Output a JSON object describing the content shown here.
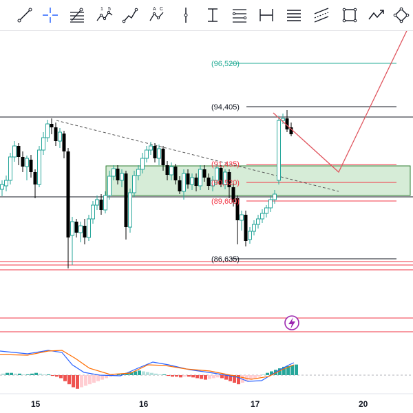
{
  "toolbar": {
    "tools": [
      {
        "name": "trend-line-tool"
      },
      {
        "name": "crosshair-tool"
      },
      {
        "name": "fib-retracement-tool"
      },
      {
        "name": "xabcd-pattern-tool",
        "text_a": "1",
        "text_b": "5"
      },
      {
        "name": "path-tool"
      },
      {
        "name": "abcd-pattern-tool",
        "text_a": "A",
        "text_b": "C"
      },
      {
        "name": "vertical-line-tool"
      },
      {
        "name": "price-range-tool"
      },
      {
        "name": "fib-levels-tool"
      },
      {
        "name": "date-range-tool"
      },
      {
        "name": "horizontal-lines-tool"
      },
      {
        "name": "parallel-channel-tool"
      },
      {
        "name": "rectangle-tool"
      },
      {
        "name": "forecast-path-tool"
      },
      {
        "name": "circle-tool"
      }
    ]
  },
  "price_levels": {
    "target": "(96,520)",
    "high": "(94,405)",
    "upper": "(91,435)",
    "middle": "(90,520)",
    "lower": "(89,600)",
    "low": "(86,635)"
  },
  "colors": {
    "up": "#26a69a",
    "down": "#000000",
    "teal_level": "#22ab94",
    "red_level": "#f23645",
    "zone_fill": "#c8e6c9",
    "zone_border": "#2e7d32",
    "macd_line": "#2962ff",
    "signal_line": "#ff6d00",
    "alert": "#9c27b0"
  },
  "alert_icon": "lightning-icon",
  "x_axis": {
    "labels": [
      "15",
      "16",
      "17",
      "20"
    ]
  },
  "chart_data": {
    "type": "candlestick",
    "x": [
      "15",
      "16",
      "17",
      "20"
    ],
    "price_levels": [
      96520,
      94405,
      91435,
      90520,
      89600,
      86635
    ]
  }
}
